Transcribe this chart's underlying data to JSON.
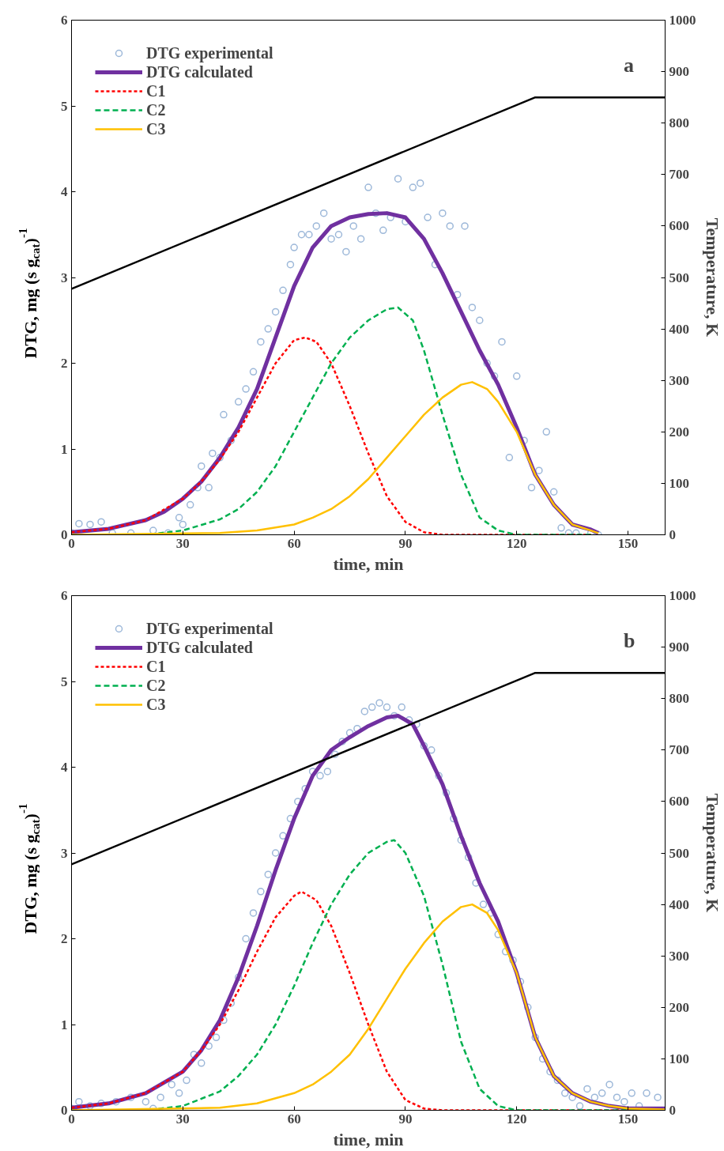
{
  "chart_data": [
    {
      "type": "line",
      "annotations": [
        "a"
      ],
      "xlabel": "time, min",
      "ylabel": "DTG, mg (s g$_{cat}$)$^{-1}$",
      "y2label": "Temperature, K",
      "xlim": [
        0,
        160
      ],
      "xticks": [
        0,
        30,
        60,
        90,
        120,
        150
      ],
      "ylim": [
        0,
        6
      ],
      "yticks": [
        0,
        1,
        2,
        3,
        4,
        5,
        6
      ],
      "y2lim": [
        0,
        1000
      ],
      "y2ticks": [
        0,
        100,
        200,
        300,
        400,
        500,
        600,
        700,
        800,
        900,
        1000
      ],
      "grid": false,
      "legend": "top left",
      "series": [
        {
          "name": "DTG experimental",
          "type": "scatter",
          "marker": "circle",
          "color": "#9db8d9",
          "x": [
            0,
            2,
            5,
            8,
            11,
            16,
            22,
            26,
            29,
            30,
            32,
            34,
            35,
            37,
            38,
            40,
            41,
            43,
            45,
            47,
            49,
            51,
            53,
            55,
            57,
            59,
            60,
            62,
            64,
            66,
            68,
            70,
            72,
            74,
            76,
            78,
            80,
            82,
            84,
            86,
            88,
            90,
            92,
            94,
            96,
            98,
            100,
            102,
            104,
            106,
            108,
            110,
            112,
            114,
            116,
            118,
            120,
            122,
            124,
            126,
            128,
            130,
            132,
            134,
            136,
            140,
            142
          ],
          "values": [
            0.02,
            0.13,
            0.12,
            0.15,
            0.02,
            0.02,
            0.05,
            0.02,
            0.2,
            0.12,
            0.35,
            0.55,
            0.8,
            0.55,
            0.95,
            0.9,
            1.4,
            1.1,
            1.55,
            1.7,
            1.9,
            2.25,
            2.4,
            2.6,
            2.85,
            3.15,
            3.35,
            3.5,
            3.5,
            3.6,
            3.75,
            3.45,
            3.5,
            3.3,
            3.6,
            3.45,
            4.05,
            3.75,
            3.55,
            3.7,
            4.15,
            3.65,
            4.05,
            4.1,
            3.7,
            3.15,
            3.75,
            3.6,
            2.8,
            3.6,
            2.65,
            2.5,
            2.0,
            1.85,
            2.25,
            0.9,
            1.85,
            1.1,
            0.55,
            0.75,
            1.2,
            0.5,
            0.08,
            0.02,
            0.02,
            0.02,
            0.0
          ]
        },
        {
          "name": "DTG calculated",
          "line_style": "solid",
          "color": "#7030a0",
          "x": [
            0,
            10,
            20,
            25,
            30,
            35,
            40,
            45,
            50,
            55,
            60,
            65,
            70,
            75,
            80,
            85,
            90,
            95,
            100,
            105,
            110,
            115,
            120,
            125,
            130,
            135,
            140,
            142
          ],
          "values": [
            0.03,
            0.07,
            0.17,
            0.27,
            0.42,
            0.62,
            0.9,
            1.25,
            1.7,
            2.3,
            2.9,
            3.35,
            3.6,
            3.7,
            3.74,
            3.75,
            3.7,
            3.45,
            3.05,
            2.6,
            2.15,
            1.75,
            1.25,
            0.7,
            0.35,
            0.12,
            0.06,
            0.02
          ]
        },
        {
          "name": "C1",
          "type": "line",
          "line_style": "dotted",
          "color": "#ff0000",
          "x": [
            0,
            10,
            20,
            30,
            35,
            40,
            45,
            50,
            55,
            60,
            63,
            66,
            70,
            75,
            80,
            85,
            90,
            95,
            100,
            140
          ],
          "values": [
            0.03,
            0.07,
            0.17,
            0.42,
            0.62,
            0.88,
            1.2,
            1.6,
            2.0,
            2.27,
            2.3,
            2.25,
            2.0,
            1.5,
            0.95,
            0.45,
            0.15,
            0.03,
            0.0,
            0.0
          ]
        },
        {
          "name": "C2",
          "type": "line",
          "line_style": "dashed",
          "color": "#00b050",
          "x": [
            0,
            20,
            30,
            40,
            45,
            50,
            55,
            60,
            65,
            70,
            75,
            80,
            85,
            88,
            92,
            95,
            100,
            105,
            110,
            115,
            120,
            140
          ],
          "values": [
            0,
            0.0,
            0.05,
            0.18,
            0.3,
            0.5,
            0.8,
            1.2,
            1.6,
            2.0,
            2.3,
            2.5,
            2.63,
            2.65,
            2.5,
            2.15,
            1.4,
            0.7,
            0.2,
            0.05,
            0.0,
            0.0
          ]
        },
        {
          "name": "C3",
          "type": "line",
          "line_style": "solid",
          "color": "#ffc000",
          "x": [
            0,
            40,
            50,
            60,
            65,
            70,
            75,
            80,
            85,
            90,
            95,
            100,
            105,
            108,
            112,
            115,
            120,
            125,
            130,
            135,
            140,
            142
          ],
          "values": [
            0,
            0.02,
            0.05,
            0.12,
            0.2,
            0.3,
            0.45,
            0.65,
            0.9,
            1.15,
            1.4,
            1.6,
            1.75,
            1.78,
            1.7,
            1.55,
            1.2,
            0.7,
            0.35,
            0.12,
            0.05,
            0.02
          ]
        },
        {
          "type": "line",
          "axis": "y2",
          "line_style": "solid",
          "color": "#000000",
          "x": [
            0,
            125,
            160
          ],
          "values": [
            478,
            850,
            850
          ]
        }
      ]
    },
    {
      "type": "line",
      "annotations": [
        "b"
      ],
      "xlabel": "time, min",
      "ylabel": "DTG, mg (s g$_{cat}$)$^{-1}$",
      "y2label": "Temperature, K",
      "xlim": [
        0,
        160
      ],
      "xticks": [
        0,
        30,
        60,
        90,
        120,
        150
      ],
      "ylim": [
        0,
        6
      ],
      "yticks": [
        0,
        1,
        2,
        3,
        4,
        5,
        6
      ],
      "y2lim": [
        0,
        1000
      ],
      "y2ticks": [
        0,
        100,
        200,
        300,
        400,
        500,
        600,
        700,
        800,
        900,
        1000
      ],
      "grid": false,
      "legend": "top left",
      "series": [
        {
          "name": "DTG experimental",
          "type": "scatter",
          "marker": "circle",
          "color": "#9db8d9",
          "x": [
            0,
            2,
            5,
            8,
            12,
            16,
            20,
            22,
            24,
            27,
            29,
            31,
            33,
            35,
            37,
            39,
            41,
            43,
            45,
            47,
            49,
            51,
            53,
            55,
            57,
            59,
            61,
            63,
            65,
            67,
            69,
            71,
            73,
            75,
            77,
            79,
            81,
            83,
            85,
            87,
            89,
            91,
            93,
            95,
            97,
            99,
            101,
            103,
            105,
            107,
            109,
            111,
            113,
            115,
            117,
            119,
            121,
            123,
            125,
            127,
            129,
            131,
            133,
            135,
            137,
            139,
            141,
            143,
            145,
            147,
            149,
            151,
            153,
            155,
            158
          ],
          "values": [
            0.02,
            0.1,
            0.05,
            0.08,
            0.1,
            0.15,
            0.1,
            0.02,
            0.15,
            0.3,
            0.2,
            0.35,
            0.65,
            0.55,
            0.75,
            0.85,
            1.05,
            1.25,
            1.55,
            2.0,
            2.3,
            2.55,
            2.75,
            3.0,
            3.2,
            3.4,
            3.6,
            3.75,
            3.95,
            3.9,
            3.95,
            4.15,
            4.3,
            4.4,
            4.45,
            4.65,
            4.7,
            4.75,
            4.7,
            4.6,
            4.7,
            4.55,
            4.5,
            4.25,
            4.2,
            3.9,
            3.7,
            3.4,
            3.15,
            2.95,
            2.65,
            2.4,
            2.3,
            2.05,
            1.85,
            1.75,
            1.5,
            1.2,
            0.85,
            0.6,
            0.45,
            0.35,
            0.2,
            0.15,
            0.05,
            0.25,
            0.15,
            0.2,
            0.3,
            0.15,
            0.1,
            0.2,
            0.05,
            0.2,
            0.15
          ]
        },
        {
          "name": "DTG calculated",
          "line_style": "solid",
          "color": "#7030a0",
          "x": [
            0,
            10,
            20,
            30,
            35,
            40,
            45,
            50,
            55,
            60,
            65,
            70,
            75,
            80,
            85,
            88,
            92,
            95,
            100,
            105,
            110,
            115,
            120,
            125,
            130,
            135,
            140,
            145,
            150,
            160
          ],
          "values": [
            0.03,
            0.08,
            0.2,
            0.45,
            0.7,
            1.05,
            1.55,
            2.15,
            2.8,
            3.4,
            3.9,
            4.2,
            4.35,
            4.48,
            4.58,
            4.6,
            4.5,
            4.25,
            3.8,
            3.2,
            2.65,
            2.2,
            1.6,
            0.85,
            0.4,
            0.2,
            0.1,
            0.05,
            0.02,
            0.02
          ]
        },
        {
          "name": "C1",
          "type": "line",
          "line_style": "dotted",
          "color": "#ff0000",
          "x": [
            0,
            10,
            20,
            30,
            35,
            40,
            45,
            50,
            55,
            60,
            62,
            66,
            70,
            75,
            80,
            85,
            90,
            95,
            100,
            160
          ],
          "values": [
            0.03,
            0.08,
            0.2,
            0.45,
            0.7,
            1.0,
            1.4,
            1.85,
            2.25,
            2.5,
            2.55,
            2.45,
            2.15,
            1.6,
            1.0,
            0.45,
            0.12,
            0.02,
            0,
            0
          ]
        },
        {
          "name": "C2",
          "type": "line",
          "line_style": "dashed",
          "color": "#00b050",
          "x": [
            0,
            20,
            30,
            40,
            45,
            50,
            55,
            60,
            65,
            70,
            75,
            80,
            85,
            87,
            90,
            95,
            100,
            105,
            110,
            115,
            120,
            160
          ],
          "values": [
            0,
            0,
            0.05,
            0.22,
            0.4,
            0.65,
            1.0,
            1.45,
            1.95,
            2.4,
            2.75,
            3.0,
            3.13,
            3.15,
            3.0,
            2.5,
            1.7,
            0.8,
            0.25,
            0.05,
            0,
            0
          ]
        },
        {
          "name": "C3",
          "type": "line",
          "line_style": "solid",
          "color": "#ffc000",
          "x": [
            0,
            40,
            50,
            60,
            65,
            70,
            75,
            80,
            85,
            90,
            95,
            100,
            105,
            108,
            112,
            115,
            120,
            125,
            130,
            135,
            140,
            145,
            150,
            160
          ],
          "values": [
            0,
            0.03,
            0.08,
            0.2,
            0.3,
            0.45,
            0.65,
            0.95,
            1.3,
            1.65,
            1.95,
            2.2,
            2.37,
            2.4,
            2.3,
            2.1,
            1.6,
            0.85,
            0.4,
            0.2,
            0.1,
            0.05,
            0.02,
            0.01
          ]
        },
        {
          "type": "line",
          "axis": "y2",
          "line_style": "solid",
          "color": "#000000",
          "x": [
            0,
            125,
            160
          ],
          "values": [
            478,
            850,
            850
          ]
        }
      ]
    }
  ]
}
